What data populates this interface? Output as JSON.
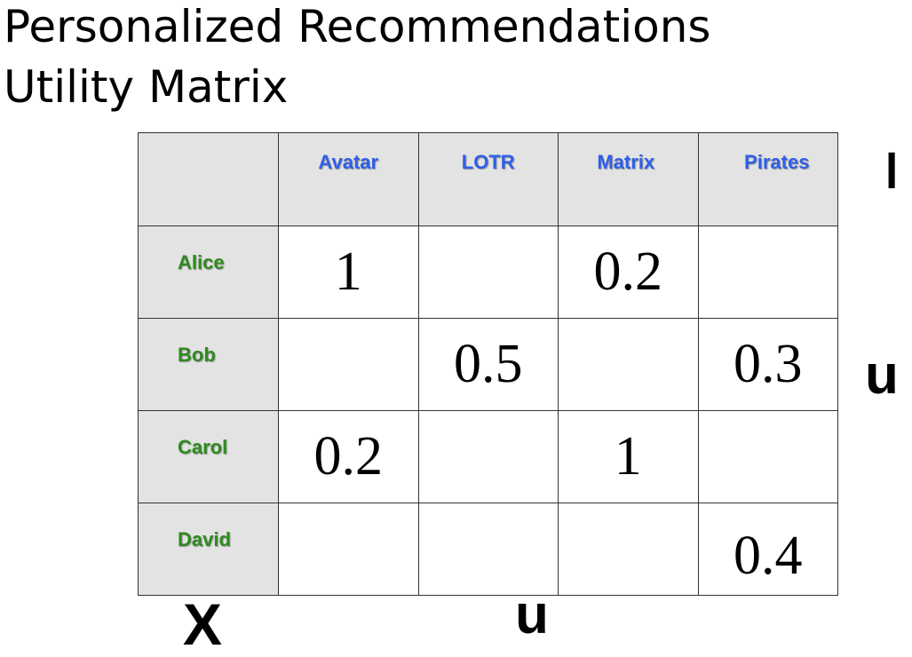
{
  "title": {
    "line1": "Personalized Recommendations",
    "line2": "Utility Matrix"
  },
  "matrix": {
    "columns": [
      "Avatar",
      "LOTR",
      "Matrix",
      "Pirates"
    ],
    "rows": [
      {
        "name": "Alice",
        "values": [
          "1",
          "",
          "0.2",
          ""
        ]
      },
      {
        "name": "Bob",
        "values": [
          "",
          "0.5",
          "",
          "0.3"
        ]
      },
      {
        "name": "Carol",
        "values": [
          "0.2",
          "",
          "1",
          ""
        ]
      },
      {
        "name": "David",
        "values": [
          "",
          "",
          "",
          "0.4"
        ]
      }
    ]
  },
  "annotations": {
    "right_top": "I",
    "right_middle": "u",
    "bottom_left": "X",
    "bottom_middle": "u"
  },
  "colors": {
    "column_label": "#2f5fe8",
    "row_label": "#2f8a1f",
    "header_fill": "#e3e3e3",
    "grid_line": "#333333"
  }
}
